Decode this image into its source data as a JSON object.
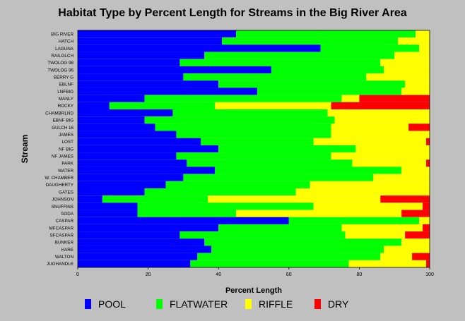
{
  "chart_data": {
    "type": "bar",
    "orientation": "horizontal",
    "stacked": true,
    "title": "Habitat Type by Percent Length for Streams in the Big River Area",
    "xlabel": "Percent Length",
    "ylabel": "Stream",
    "xlim": [
      0,
      100
    ],
    "xticks": [
      "0",
      "20",
      "40",
      "60",
      "80",
      "100"
    ],
    "grid": false,
    "legend_position": "bottom",
    "categories": [
      "BIG RIVER",
      "HATCH",
      "LAGUNA",
      "RAILGLCH",
      "TWOLOG 98",
      "TWOLOG 96",
      "BERRY G",
      "EBLNF",
      "LNFBIG",
      "MANLY",
      "ROCKY",
      "CHAMBRLND",
      "EBNF BIG",
      "GULCH 16",
      "JAMES",
      "LOST",
      "NF BIG",
      "NF JAMES",
      "PARK",
      "WATER",
      "W. CHAMBER",
      "DAUGHERTY",
      "GATES",
      "JOHNSON",
      "SNUFFINS",
      "SODA",
      "CASPAR",
      "MFCASPAR",
      "SFCASPAR",
      "BUNKER",
      "HARE",
      "WALTON",
      "JUGHANDLE"
    ],
    "series": [
      {
        "name": "POOL",
        "color": "#0000ff",
        "values": [
          45,
          41,
          69,
          36,
          29,
          55,
          30,
          40,
          51,
          19,
          9,
          27,
          19,
          22,
          28,
          35,
          40,
          28,
          31,
          39,
          30,
          25,
          19,
          7,
          17,
          17,
          60,
          40,
          29,
          36,
          38,
          34,
          32
        ]
      },
      {
        "name": "FLATWATER",
        "color": "#00ff00",
        "values": [
          51,
          50,
          28,
          54,
          57,
          32,
          52,
          53,
          41,
          56,
          30,
          44,
          54,
          50,
          44,
          32,
          39,
          44,
          47,
          53,
          54,
          41,
          43,
          30,
          50,
          28,
          37,
          35,
          47,
          56,
          49,
          52,
          45
        ]
      },
      {
        "name": "RIFFLE",
        "color": "#ffff00",
        "values": [
          4,
          9,
          3,
          10,
          14,
          13,
          18,
          7,
          8,
          5,
          33,
          29,
          27,
          22,
          28,
          32,
          21,
          28,
          21,
          8,
          16,
          34,
          38,
          49,
          31,
          47,
          3,
          23,
          17,
          8,
          13,
          9,
          22
        ]
      },
      {
        "name": "DRY",
        "color": "#ff0000",
        "values": [
          0,
          0,
          0,
          0,
          0,
          0,
          0,
          0,
          0,
          20,
          28,
          0,
          0,
          6,
          0,
          1,
          0,
          0,
          1,
          0,
          0,
          0,
          0,
          14,
          2,
          8,
          0,
          2,
          7,
          0,
          0,
          5,
          1
        ]
      }
    ]
  }
}
